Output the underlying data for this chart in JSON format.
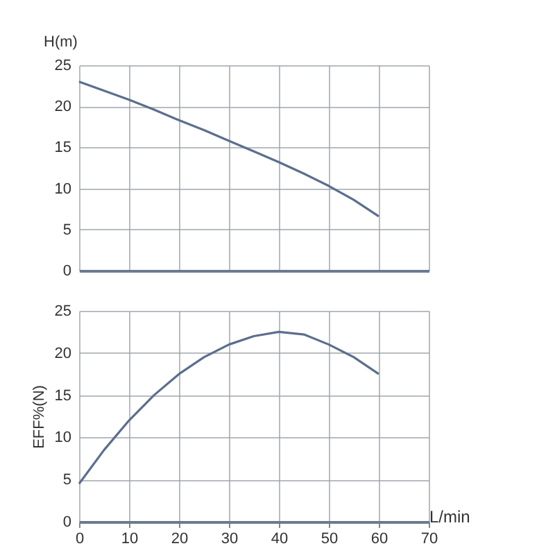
{
  "chart_data": [
    {
      "type": "line",
      "ylabel": "H(m)",
      "x": [
        0,
        5,
        10,
        15,
        20,
        25,
        30,
        35,
        40,
        45,
        50,
        55,
        60
      ],
      "series": [
        {
          "color": "#5b6e8e",
          "values": [
            23,
            21.9,
            20.8,
            19.6,
            18.3,
            17.1,
            15.8,
            14.5,
            13.2,
            11.8,
            10.3,
            8.6,
            6.6
          ]
        }
      ],
      "xlim": [
        0,
        70
      ],
      "xticks": [
        0,
        10,
        20,
        30,
        40,
        50,
        60,
        70
      ],
      "ylim": [
        0,
        25
      ],
      "yticks": [
        0,
        5,
        10,
        15,
        20,
        25
      ],
      "grid": true,
      "tick_labels": "y"
    },
    {
      "type": "line",
      "ylabel": "EFF%(N)",
      "xlabel": "L/min",
      "x": [
        0,
        5,
        10,
        15,
        20,
        25,
        30,
        35,
        40,
        45,
        50,
        55,
        60
      ],
      "series": [
        {
          "color": "#5b6e8e",
          "values": [
            4.5,
            8.5,
            12,
            15,
            17.5,
            19.5,
            21,
            22,
            22.5,
            22.2,
            21,
            19.5,
            17.5
          ]
        }
      ],
      "xlim": [
        0,
        70
      ],
      "xticks": [
        0,
        10,
        20,
        30,
        40,
        50,
        60,
        70
      ],
      "ylim": [
        0,
        25
      ],
      "yticks": [
        0,
        5,
        10,
        15,
        20,
        25
      ],
      "grid": true
    }
  ]
}
